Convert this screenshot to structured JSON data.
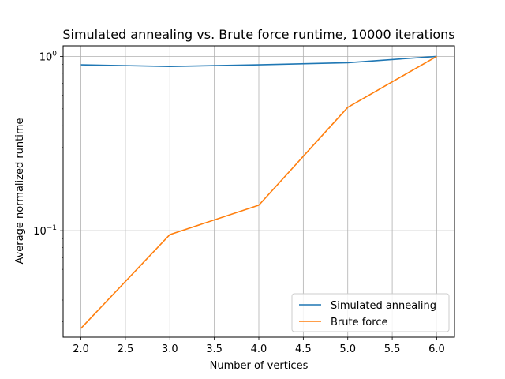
{
  "chart_data": {
    "type": "line",
    "title": "Simulated annealing vs. Brute force runtime, 10000 iterations",
    "xlabel": "Number of vertices",
    "ylabel": "Average normalized runtime",
    "xlim": [
      1.8,
      6.2
    ],
    "ylim": [
      0.0245,
      1.15
    ],
    "yscale": "log",
    "grid": true,
    "legend_position": "lower-right",
    "x_ticks": [
      "2.0",
      "2.5",
      "3.0",
      "3.5",
      "4.0",
      "4.5",
      "5.0",
      "5.5",
      "6.0"
    ],
    "y_ticks": [
      {
        "value": 0.1,
        "base": "10",
        "exp": "−1"
      },
      {
        "value": 1,
        "base": "10",
        "exp": "0"
      }
    ],
    "x": [
      2,
      3,
      4,
      5,
      6
    ],
    "series": [
      {
        "name": "Simulated annealing",
        "color": "#1f77b4",
        "values": [
          0.895,
          0.875,
          0.895,
          0.92,
          1.0
        ]
      },
      {
        "name": "Brute force",
        "color": "#ff7f0e",
        "values": [
          0.0275,
          0.095,
          0.14,
          0.51,
          1.0
        ]
      }
    ]
  }
}
